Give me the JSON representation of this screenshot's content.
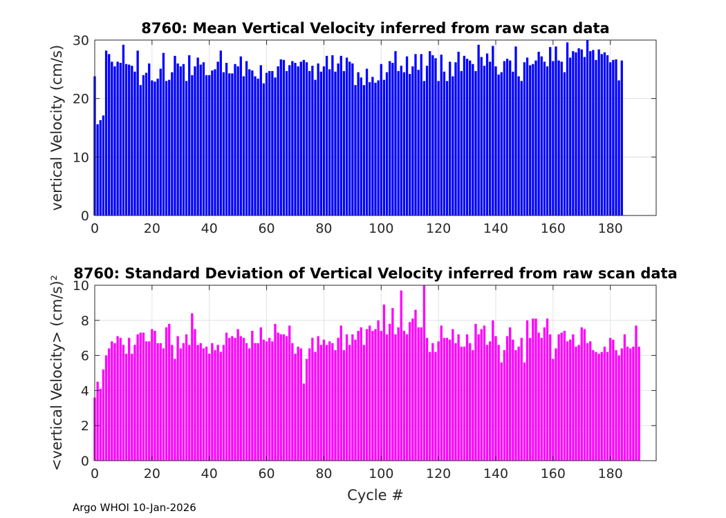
{
  "figure": {
    "footer": "Argo WHOI 10-Jan-2026"
  },
  "chart_data": [
    {
      "type": "bar",
      "title": "8760: Mean Vertical Velocity inferred from raw scan data",
      "xlabel": "",
      "ylabel": "vertical Velocity (cm/s)",
      "color": "#0000ff",
      "xlim": [
        0,
        196
      ],
      "ylim": [
        0,
        30
      ],
      "xticks": [
        0,
        20,
        40,
        60,
        80,
        100,
        120,
        140,
        160,
        180
      ],
      "yticks": [
        0,
        10,
        20,
        30
      ],
      "grid": true,
      "x_start": 0,
      "values": [
        23.8,
        15.6,
        16.3,
        17.1,
        28.2,
        27.6,
        26.3,
        25.5,
        26.3,
        26.1,
        29.2,
        25.9,
        25.8,
        25.6,
        24.6,
        28.2,
        22.3,
        24.0,
        24.4,
        26.0,
        23.1,
        22.9,
        23.4,
        25.1,
        27.8,
        23.0,
        23.2,
        24.5,
        27.3,
        26.0,
        25.5,
        25.9,
        23.0,
        27.4,
        24.0,
        25.5,
        27.0,
        25.8,
        26.2,
        24.0,
        24.0,
        24.8,
        25.0,
        26.3,
        28.2,
        24.5,
        26.1,
        24.3,
        24.3,
        25.9,
        25.5,
        27.2,
        23.8,
        26.4,
        25.0,
        24.8,
        23.8,
        23.4,
        25.7,
        22.6,
        24.4,
        24.7,
        24.7,
        23.6,
        25.5,
        26.7,
        26.6,
        24.7,
        25.7,
        26.4,
        26.1,
        25.5,
        26.3,
        26.6,
        26.2,
        24.7,
        25.6,
        23.2,
        26.0,
        24.6,
        25.5,
        27.3,
        25.0,
        27.4,
        24.6,
        26.0,
        27.3,
        24.7,
        27.0,
        26.3,
        26.0,
        22.3,
        24.5,
        23.6,
        22.3,
        25.1,
        22.8,
        23.7,
        22.7,
        23.1,
        25.9,
        23.2,
        24.5,
        26.4,
        26.1,
        28.1,
        24.7,
        25.6,
        24.5,
        27.2,
        24.2,
        25.5,
        27.6,
        24.9,
        27.6,
        23.0,
        25.6,
        28.1,
        27.4,
        26.9,
        23.0,
        27.5,
        24.6,
        23.0,
        26.3,
        23.8,
        26.2,
        28.0,
        24.7,
        27.3,
        26.8,
        26.5,
        25.9,
        24.7,
        29.2,
        27.1,
        25.6,
        27.7,
        26.3,
        29.0,
        25.5,
        24.1,
        24.5,
        26.4,
        26.8,
        26.5,
        24.6,
        28.9,
        23.8,
        23.0,
        26.2,
        27.0,
        25.7,
        25.9,
        26.5,
        28.0,
        27.2,
        26.3,
        25.5,
        28.8,
        26.4,
        28.9,
        26.5,
        26.3,
        24.5,
        29.6,
        27.0,
        28.1,
        27.9,
        28.6,
        28.4,
        27.1,
        30.5,
        28.1,
        28.3,
        26.6,
        28.4,
        27.6,
        27.9,
        27.4,
        26.2,
        26.6,
        26.7,
        23.1,
        26.5
      ]
    },
    {
      "type": "bar",
      "title": "8760: Standard Deviation of Vertical Velocity inferred from raw scan data",
      "xlabel": "Cycle #",
      "ylabel": "<vertical Velocity> (cm/s)²",
      "color": "#ff00ff",
      "xlim": [
        0,
        196
      ],
      "ylim": [
        0,
        10
      ],
      "xticks": [
        0,
        20,
        40,
        60,
        80,
        100,
        120,
        140,
        160,
        180
      ],
      "yticks": [
        0,
        2,
        4,
        6,
        8,
        10
      ],
      "grid": true,
      "x_start": 0,
      "values": [
        3.6,
        4.5,
        4.1,
        5.2,
        6.0,
        6.4,
        6.8,
        6.7,
        7.1,
        7.0,
        6.6,
        6.1,
        7.0,
        6.1,
        6.6,
        7.2,
        7.3,
        7.3,
        6.8,
        6.8,
        7.5,
        7.4,
        6.7,
        6.7,
        6.4,
        7.6,
        7.8,
        6.6,
        5.8,
        7.1,
        6.4,
        6.7,
        7.2,
        6.6,
        8.4,
        7.5,
        6.6,
        6.7,
        6.4,
        6.5,
        6.1,
        6.7,
        6.3,
        6.6,
        6.2,
        6.6,
        7.3,
        7.0,
        7.1,
        7.0,
        7.5,
        7.1,
        7.0,
        6.7,
        6.4,
        7.4,
        6.7,
        6.7,
        7.6,
        6.9,
        6.8,
        7.0,
        6.8,
        7.8,
        7.3,
        7.2,
        7.2,
        7.1,
        7.7,
        6.7,
        6.1,
        6.5,
        6.4,
        4.4,
        5.8,
        6.4,
        7.0,
        6.2,
        7.1,
        6.6,
        6.9,
        6.6,
        6.8,
        6.7,
        6.3,
        7.0,
        7.7,
        6.3,
        7.2,
        6.6,
        7.2,
        6.9,
        7.4,
        7.6,
        6.6,
        7.5,
        7.7,
        7.4,
        7.5,
        8.0,
        7.4,
        8.9,
        7.2,
        7.8,
        8.7,
        7.2,
        7.6,
        9.7,
        7.4,
        7.2,
        7.9,
        8.1,
        8.6,
        7.6,
        7.6,
        10.1,
        7.0,
        6.2,
        6.7,
        6.2,
        6.8,
        7.7,
        7.0,
        7.0,
        6.9,
        7.5,
        6.7,
        7.2,
        6.5,
        6.5,
        7.2,
        6.7,
        6.3,
        7.8,
        7.2,
        7.5,
        7.7,
        6.6,
        6.8,
        8.0,
        7.1,
        6.6,
        5.6,
        6.3,
        7.1,
        7.6,
        6.9,
        6.3,
        6.5,
        7.0,
        5.6,
        8.0,
        7.0,
        8.1,
        8.1,
        7.3,
        7.0,
        7.6,
        8.1,
        7.2,
        5.8,
        6.4,
        7.2,
        7.3,
        7.4,
        6.8,
        6.9,
        7.2,
        6.5,
        6.6,
        7.6,
        7.5,
        6.7,
        6.8,
        6.3,
        6.2,
        6.1,
        6.2,
        6.5,
        6.2,
        7.0,
        6.9,
        6.3,
        6.0,
        6.4,
        7.2,
        6.5,
        6.4,
        6.5,
        7.7,
        6.5
      ]
    }
  ]
}
